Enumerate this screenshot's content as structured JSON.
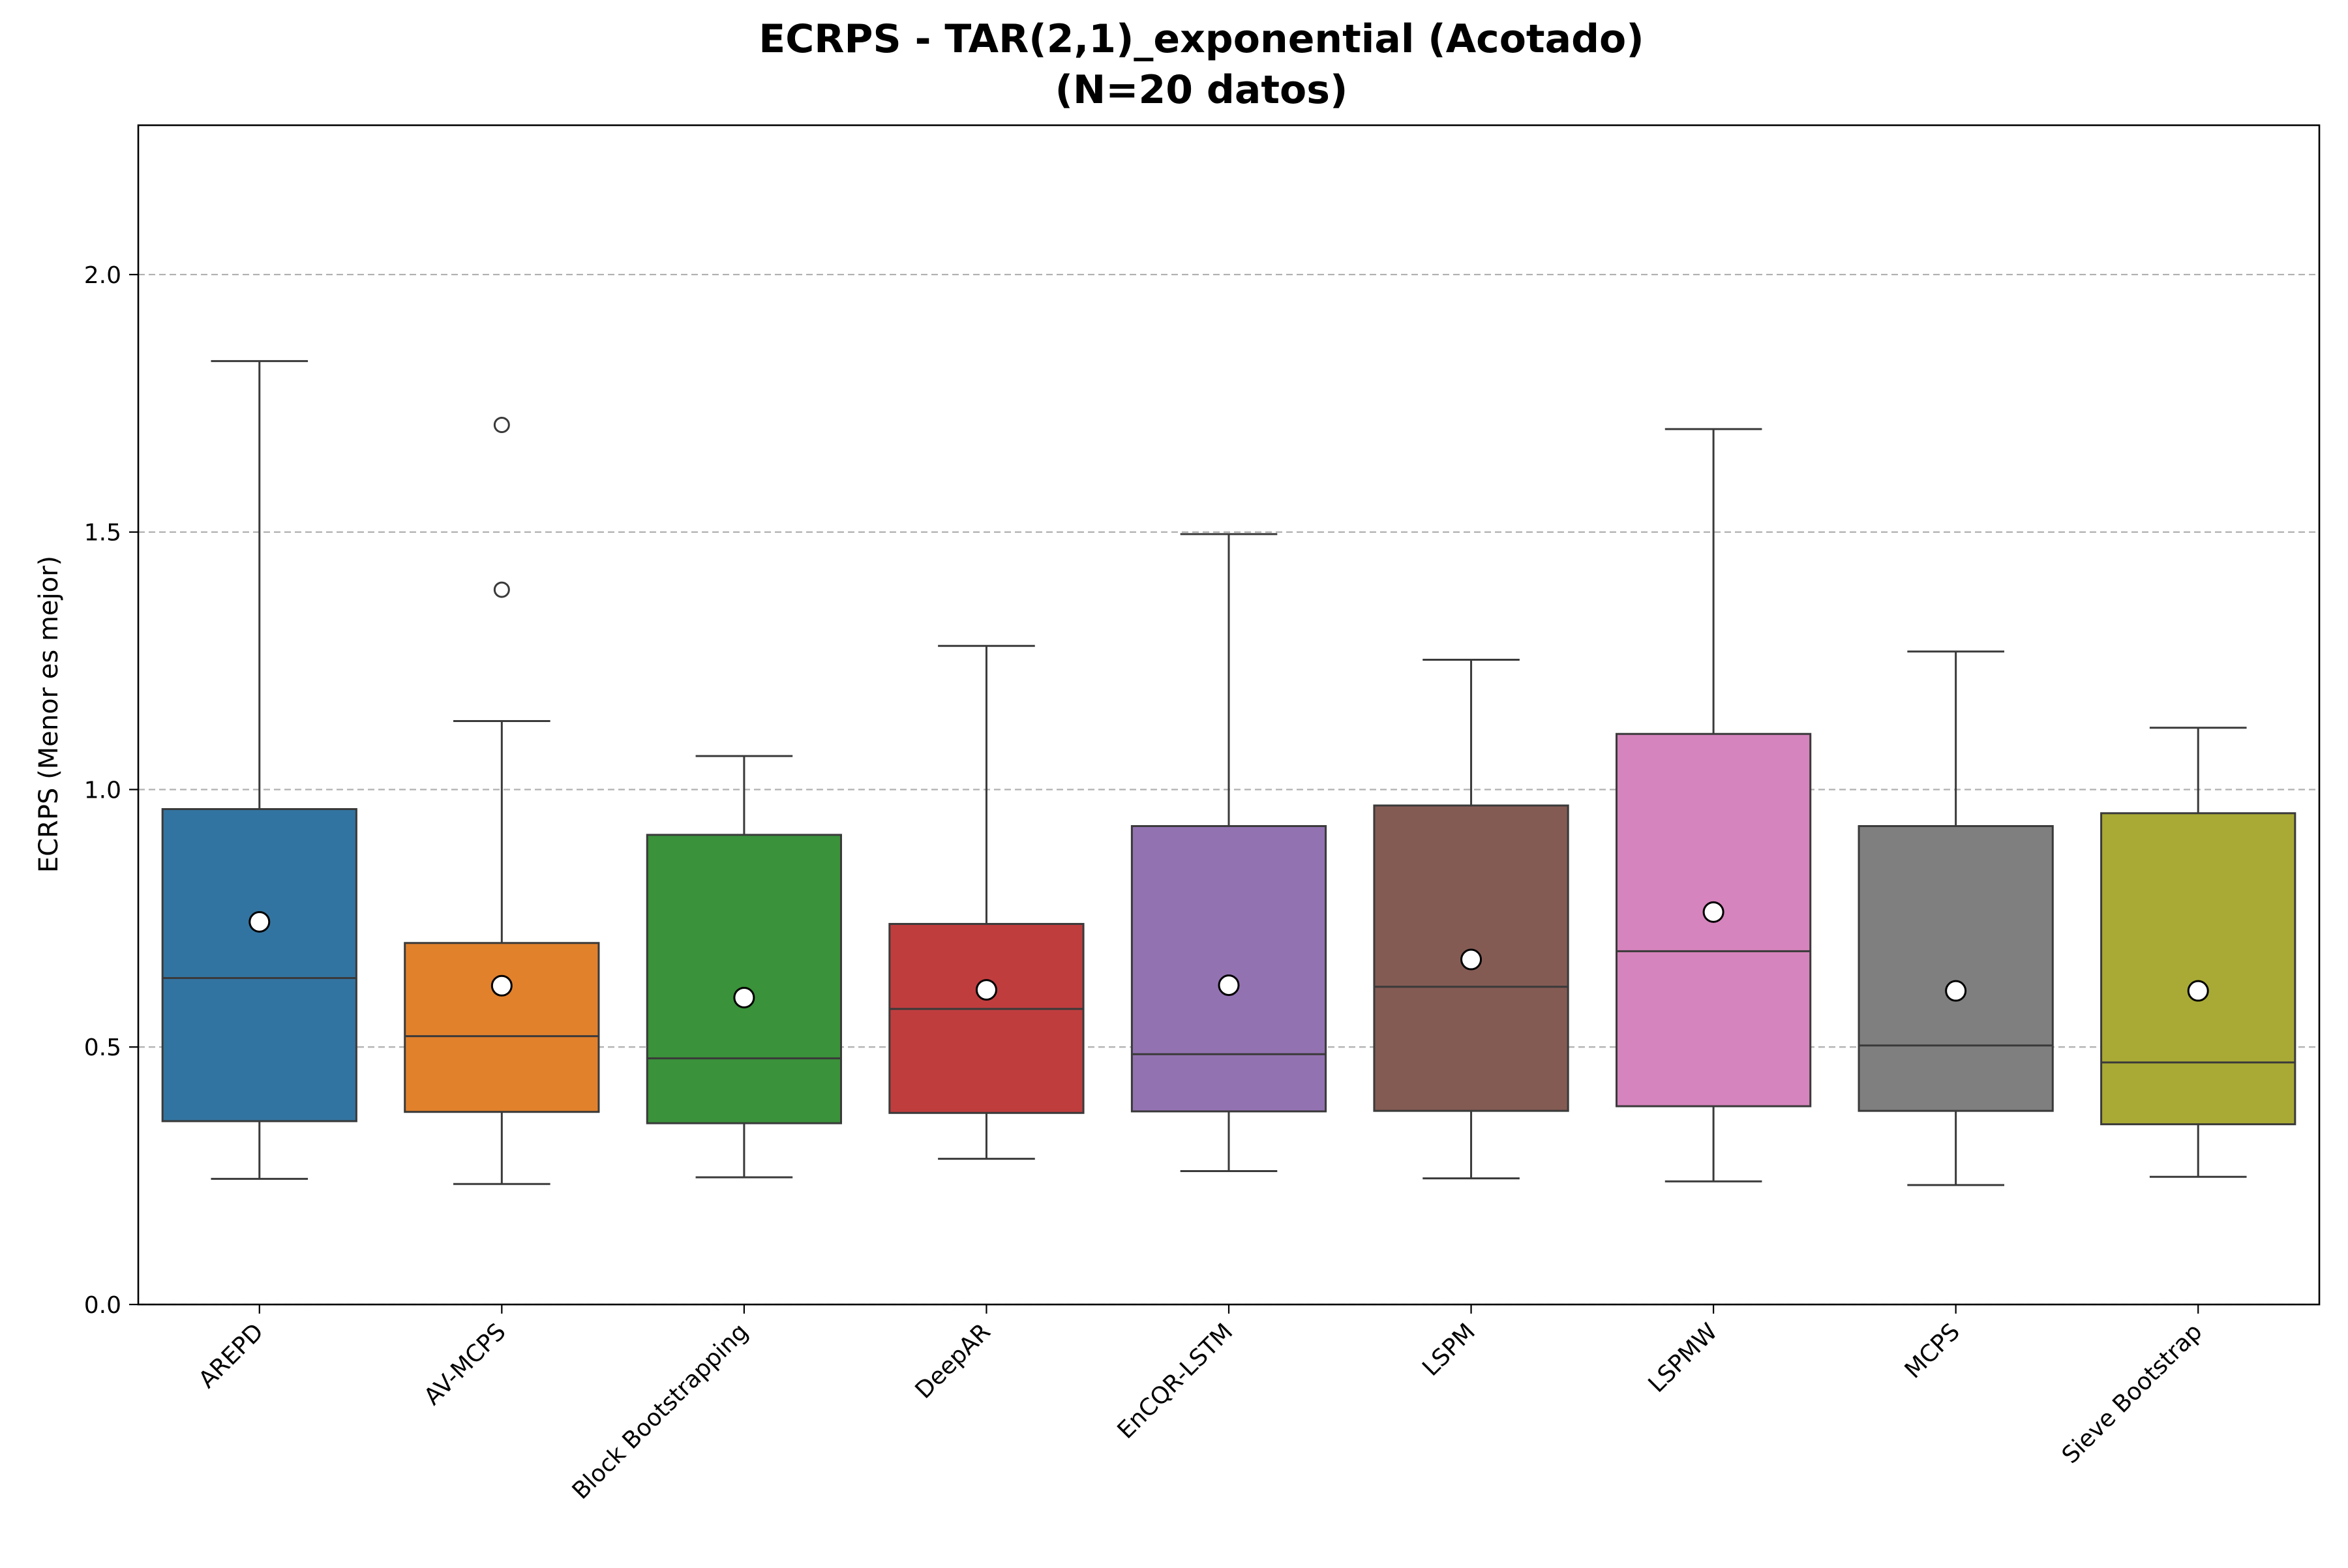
{
  "chart_data": {
    "type": "box",
    "title": "ECRPS - TAR(2,1)_exponential (Acotado)",
    "subtitle": "(N=20 datos)",
    "xlabel": "",
    "ylabel": "ECRPS (Menor es mejor)",
    "ylim": [
      0,
      2.29
    ],
    "yticks": [
      "0.0",
      "0.5",
      "1.0",
      "1.5",
      "2.0"
    ],
    "grid": "y-dashed",
    "categories": [
      "AREPD",
      "AV-MCPS",
      "Block Bootstrapping",
      "DeepAR",
      "EnCQR-LSTM",
      "LSPM",
      "LSPMW",
      "MCPS",
      "Sieve Bootstrap"
    ],
    "colors": [
      "#3274a1",
      "#e1812c",
      "#3a923a",
      "#c03d3e",
      "#9372b2",
      "#845b53",
      "#d684bd",
      "#7f7f7f",
      "#a9aa35"
    ],
    "boxes": [
      {
        "whisker_low": 0.244,
        "q1": 0.356,
        "median": 0.634,
        "q3": 0.962,
        "whisker_high": 1.832,
        "mean": 0.743,
        "outliers": []
      },
      {
        "whisker_low": 0.234,
        "q1": 0.374,
        "median": 0.521,
        "q3": 0.702,
        "whisker_high": 1.133,
        "mean": 0.619,
        "outliers": [
          1.708,
          1.388
        ]
      },
      {
        "whisker_low": 0.247,
        "q1": 0.352,
        "median": 0.478,
        "q3": 0.912,
        "whisker_high": 1.065,
        "mean": 0.596,
        "outliers": []
      },
      {
        "whisker_low": 0.283,
        "q1": 0.372,
        "median": 0.574,
        "q3": 0.739,
        "whisker_high": 1.279,
        "mean": 0.611,
        "outliers": []
      },
      {
        "whisker_low": 0.259,
        "q1": 0.375,
        "median": 0.486,
        "q3": 0.929,
        "whisker_high": 1.496,
        "mean": 0.62,
        "outliers": []
      },
      {
        "whisker_low": 0.245,
        "q1": 0.376,
        "median": 0.617,
        "q3": 0.969,
        "whisker_high": 1.252,
        "mean": 0.67,
        "outliers": []
      },
      {
        "whisker_low": 0.239,
        "q1": 0.385,
        "median": 0.686,
        "q3": 1.108,
        "whisker_high": 1.7,
        "mean": 0.762,
        "outliers": []
      },
      {
        "whisker_low": 0.232,
        "q1": 0.376,
        "median": 0.503,
        "q3": 0.929,
        "whisker_high": 1.268,
        "mean": 0.609,
        "outliers": []
      },
      {
        "whisker_low": 0.248,
        "q1": 0.35,
        "median": 0.47,
        "q3": 0.954,
        "whisker_high": 1.12,
        "mean": 0.609,
        "outliers": []
      }
    ]
  }
}
